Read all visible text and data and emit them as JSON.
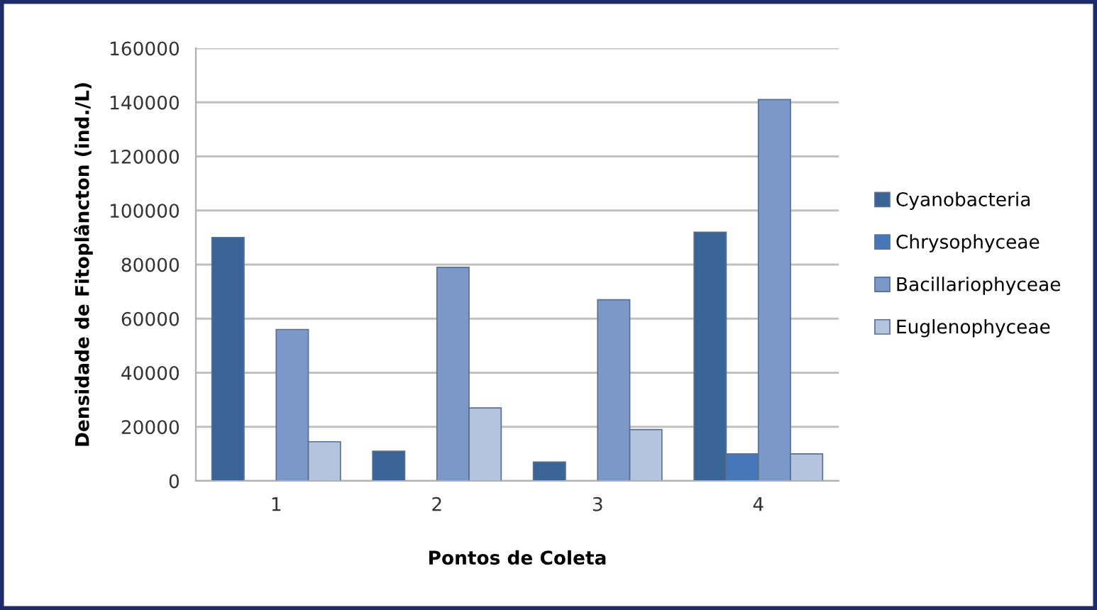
{
  "chart_data": {
    "type": "bar",
    "xlabel": "Pontos de Coleta",
    "ylabel": "Densidade de Fitoplâncton (ind./L)",
    "categories": [
      "1",
      "2",
      "3",
      "4"
    ],
    "series": [
      {
        "name": "Cyanobacteria",
        "color": "#3a6496",
        "values": [
          90000,
          11000,
          7000,
          92000
        ]
      },
      {
        "name": "Chrysophyceae",
        "color": "#4677b8",
        "values": [
          null,
          null,
          null,
          10000
        ]
      },
      {
        "name": "Bacillariophyceae",
        "color": "#7b98c8",
        "values": [
          56000,
          79000,
          67000,
          141000
        ]
      },
      {
        "name": "Euglenophyceae",
        "color": "#b4c4de",
        "values": [
          14500,
          27000,
          19000,
          10000
        ]
      }
    ],
    "ylim": [
      0,
      160000
    ],
    "yticks": [
      0,
      20000,
      40000,
      60000,
      80000,
      100000,
      120000,
      140000,
      160000
    ],
    "grid": "y",
    "legend": "right"
  }
}
